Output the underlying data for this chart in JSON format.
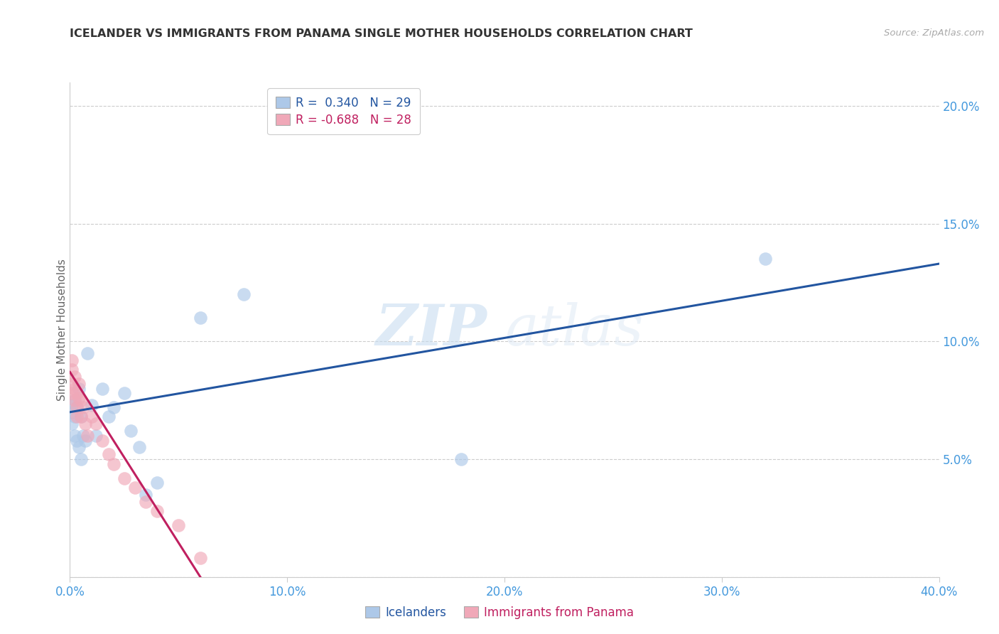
{
  "title": "ICELANDER VS IMMIGRANTS FROM PANAMA SINGLE MOTHER HOUSEHOLDS CORRELATION CHART",
  "source": "Source: ZipAtlas.com",
  "ylabel": "Single Mother Households",
  "xlim": [
    0.0,
    0.4
  ],
  "ylim": [
    0.0,
    0.21
  ],
  "x_ticks": [
    0.0,
    0.1,
    0.2,
    0.3,
    0.4
  ],
  "x_tick_labels": [
    "0.0%",
    "10.0%",
    "20.0%",
    "30.0%",
    "40.0%"
  ],
  "y_ticks": [
    0.05,
    0.1,
    0.15,
    0.2
  ],
  "y_tick_labels": [
    "5.0%",
    "10.0%",
    "15.0%",
    "20.0%"
  ],
  "icelander_color": "#adc8e8",
  "panama_color": "#f0a8b8",
  "icelander_line_color": "#2255a0",
  "panama_line_color": "#c02060",
  "title_color": "#333333",
  "axis_tick_color": "#4499dd",
  "background_color": "#ffffff",
  "watermark_zip": "ZIP",
  "watermark_atlas": "atlas",
  "legend_r1": "R =  0.340   N = 29",
  "legend_r2": "R = -0.688   N = 28",
  "legend_label1": "Icelanders",
  "legend_label2": "Immigrants from Panama",
  "icelander_x": [
    0.001,
    0.001,
    0.001,
    0.002,
    0.002,
    0.002,
    0.003,
    0.003,
    0.004,
    0.004,
    0.005,
    0.005,
    0.006,
    0.007,
    0.008,
    0.01,
    0.012,
    0.015,
    0.018,
    0.02,
    0.025,
    0.028,
    0.032,
    0.035,
    0.04,
    0.06,
    0.08,
    0.32,
    0.18
  ],
  "icelander_y": [
    0.073,
    0.07,
    0.065,
    0.075,
    0.068,
    0.06,
    0.072,
    0.058,
    0.08,
    0.055,
    0.068,
    0.05,
    0.06,
    0.058,
    0.095,
    0.073,
    0.06,
    0.08,
    0.068,
    0.072,
    0.078,
    0.062,
    0.055,
    0.035,
    0.04,
    0.11,
    0.12,
    0.135,
    0.05
  ],
  "panama_x": [
    0.001,
    0.001,
    0.001,
    0.001,
    0.002,
    0.002,
    0.002,
    0.003,
    0.003,
    0.003,
    0.004,
    0.004,
    0.005,
    0.005,
    0.006,
    0.007,
    0.008,
    0.01,
    0.012,
    0.015,
    0.018,
    0.02,
    0.025,
    0.03,
    0.035,
    0.04,
    0.05,
    0.06
  ],
  "panama_y": [
    0.092,
    0.088,
    0.082,
    0.078,
    0.085,
    0.08,
    0.075,
    0.078,
    0.072,
    0.068,
    0.082,
    0.076,
    0.075,
    0.068,
    0.072,
    0.065,
    0.06,
    0.068,
    0.065,
    0.058,
    0.052,
    0.048,
    0.042,
    0.038,
    0.032,
    0.028,
    0.022,
    0.008
  ],
  "blue_line_x0": 0.0,
  "blue_line_y0": 0.07,
  "blue_line_x1": 0.4,
  "blue_line_y1": 0.133,
  "pink_line_x0": 0.0,
  "pink_line_y0": 0.087,
  "pink_line_x1": 0.06,
  "pink_line_y1": 0.0
}
